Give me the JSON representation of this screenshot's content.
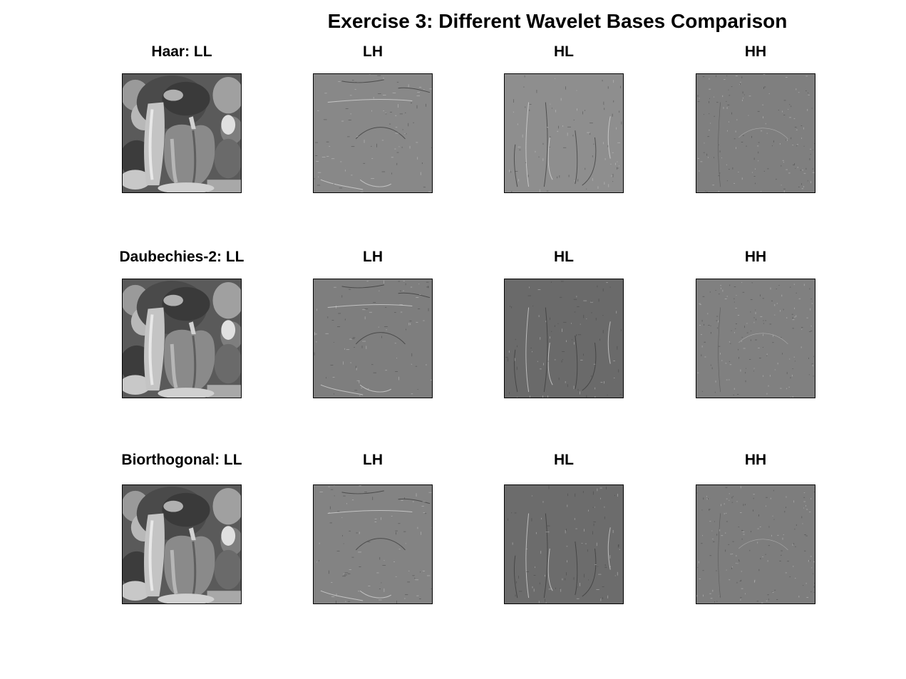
{
  "figure": {
    "title": "Exercise 3: Different Wavelet Bases Comparison",
    "rows": [
      {
        "id": "haar",
        "panels": [
          {
            "kind": "LL",
            "title": "Haar: LL",
            "tone": "#6e6e6e"
          },
          {
            "kind": "LH",
            "title": "LH",
            "tone": "#888888"
          },
          {
            "kind": "HL",
            "title": "HL",
            "tone": "#8e8e8e"
          },
          {
            "kind": "HH",
            "title": "HH",
            "tone": "#7f7f7f"
          }
        ]
      },
      {
        "id": "db2",
        "panels": [
          {
            "kind": "LL",
            "title": "Daubechies-2: LL",
            "tone": "#6e6e6e"
          },
          {
            "kind": "LH",
            "title": "LH",
            "tone": "#7e7e7e"
          },
          {
            "kind": "HL",
            "title": "HL",
            "tone": "#6a6a6a"
          },
          {
            "kind": "HH",
            "title": "HH",
            "tone": "#808080"
          }
        ]
      },
      {
        "id": "bior",
        "panels": [
          {
            "kind": "LL",
            "title": "Biorthogonal: LL",
            "tone": "#6e6e6e"
          },
          {
            "kind": "LH",
            "title": "LH",
            "tone": "#838383"
          },
          {
            "kind": "HL",
            "title": "HL",
            "tone": "#6c6c6c"
          },
          {
            "kind": "HH",
            "title": "HH",
            "tone": "#7d7d7d"
          }
        ]
      }
    ]
  }
}
